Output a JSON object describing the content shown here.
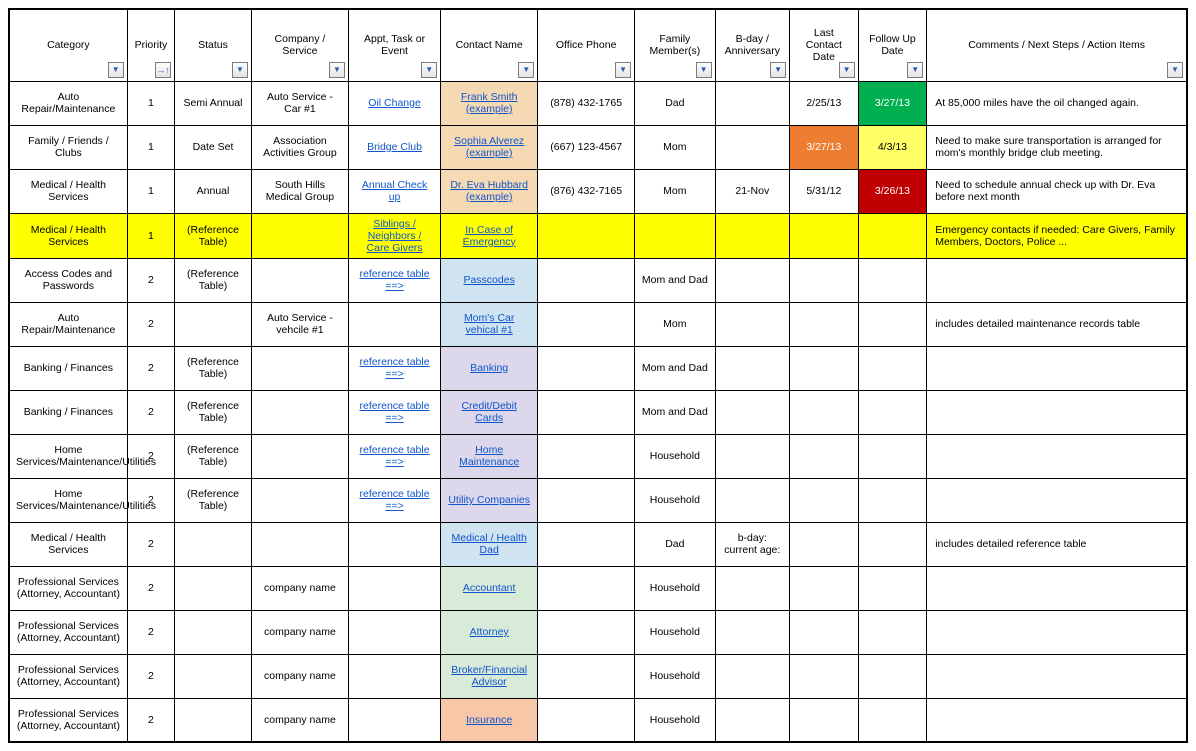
{
  "colors": {
    "link": "#1155cc",
    "bg_contact_tan": "#f4d9b3",
    "bg_contact_blue": "#d0e3f0",
    "bg_contact_lav": "#dcd7ea",
    "bg_contact_mint": "#d8ead8",
    "bg_contact_peach": "#f7c7a8",
    "bg_yellow": "#ffff00",
    "bg_orange": "#ed7d31",
    "bg_green": "#00b050",
    "bg_red": "#c00000",
    "bg_yellow_cell": "#ffff66"
  },
  "headers": [
    "Category",
    "Priority",
    "Status",
    "Company / Service",
    "Appt, Task or Event",
    "Contact Name",
    "Office Phone",
    "Family Member(s)",
    "B-day / Anniversary",
    "Last Contact Date",
    "Follow Up Date",
    "Comments / Next Steps / Action Items"
  ],
  "rows": [
    {
      "category": "Auto Repair/Maintenance",
      "priority": "1",
      "status": "Semi Annual",
      "company": "Auto Service - Car #1",
      "appt": "Oil Change",
      "appt_link": true,
      "contact": "Frank Smith (example)",
      "contact_link": true,
      "contact_bg": "bg_contact_tan",
      "office": "(878) 432-1765",
      "family": "Dad",
      "bday": "",
      "last": "2/25/13",
      "last_bg": "",
      "last_color": "",
      "follow": "3/27/13",
      "follow_bg": "bg_green",
      "follow_color": "#ffffff",
      "comments": "At 85,000 miles have the oil changed again."
    },
    {
      "category": "Family / Friends / Clubs",
      "priority": "1",
      "status": "Date Set",
      "company": "Association Activities Group",
      "appt": "Bridge Club",
      "appt_link": true,
      "contact": "Sophia Alverez (example)",
      "contact_link": true,
      "contact_bg": "bg_contact_tan",
      "office": "(667) 123-4567",
      "family": "Mom",
      "bday": "",
      "last": "3/27/13",
      "last_bg": "bg_orange",
      "last_color": "#ffffff",
      "follow": "4/3/13",
      "follow_bg": "bg_yellow_cell",
      "follow_color": "#000000",
      "comments": "Need to make sure transportation is arranged for mom's monthly bridge club meeting."
    },
    {
      "category": "Medical / Health Services",
      "priority": "1",
      "status": "Annual",
      "company": "South Hills Medical Group",
      "appt": "Annual Check up",
      "appt_link": true,
      "contact": "Dr. Eva Hubbard (example)",
      "contact_link": true,
      "contact_bg": "bg_contact_tan",
      "office": "(876) 432-7165",
      "family": "Mom",
      "bday": "21-Nov",
      "last": "5/31/12",
      "last_bg": "",
      "last_color": "",
      "follow": "3/26/13",
      "follow_bg": "bg_red",
      "follow_color": "#ffffff",
      "comments": "Need to schedule annual check up with Dr. Eva before next month"
    },
    {
      "row_bg": "bg_yellow",
      "category": "Medical / Health Services",
      "priority": "1",
      "status": "(Reference Table)",
      "company": "",
      "appt": "Siblings / Neighbors / Care Givers",
      "appt_link": true,
      "contact": "In Case of Emergency",
      "contact_link": true,
      "contact_bg": "bg_yellow",
      "office": "",
      "family": "",
      "bday": "",
      "last": "",
      "follow": "",
      "comments": "Emergency contacts if needed: Care Givers, Family Members, Doctors, Police ..."
    },
    {
      "category": "Access Codes and Passwords",
      "priority": "2",
      "status": "(Reference Table)",
      "company": "",
      "appt": "reference table ==>",
      "appt_link": true,
      "contact": "Passcodes",
      "contact_link": true,
      "contact_bg": "bg_contact_blue",
      "office": "",
      "family": "Mom and Dad",
      "bday": "",
      "last": "",
      "follow": "",
      "comments": ""
    },
    {
      "category": "Auto Repair/Maintenance",
      "priority": "2",
      "status": "",
      "company": "Auto Service - vehcile #1",
      "appt": "",
      "appt_link": false,
      "contact": "Mom's Car vehical #1",
      "contact_link": true,
      "contact_bg": "bg_contact_blue",
      "office": "",
      "family": "Mom",
      "bday": "",
      "last": "",
      "follow": "",
      "comments": "includes detailed maintenance records table"
    },
    {
      "category": "Banking / Finances",
      "priority": "2",
      "status": "(Reference Table)",
      "company": "",
      "appt": "reference table ==>",
      "appt_link": true,
      "contact": "Banking",
      "contact_link": true,
      "contact_bg": "bg_contact_lav",
      "office": "",
      "family": "Mom and Dad",
      "bday": "",
      "last": "",
      "follow": "",
      "comments": ""
    },
    {
      "category": "Banking / Finances",
      "priority": "2",
      "status": "(Reference Table)",
      "company": "",
      "appt": "reference table ==>",
      "appt_link": true,
      "contact": "Credit/Debit Cards",
      "contact_link": true,
      "contact_bg": "bg_contact_lav",
      "office": "",
      "family": "Mom and Dad",
      "bday": "",
      "last": "",
      "follow": "",
      "comments": ""
    },
    {
      "category": "Home Services/Maintenance/Utilities",
      "priority": "2",
      "status": "(Reference Table)",
      "company": "",
      "appt": "reference table ==>",
      "appt_link": true,
      "contact": "Home Maintenance",
      "contact_link": true,
      "contact_bg": "bg_contact_lav",
      "office": "",
      "family": "Household",
      "bday": "",
      "last": "",
      "follow": "",
      "comments": ""
    },
    {
      "category": "Home Services/Maintenance/Utilities",
      "priority": "2",
      "status": "(Reference Table)",
      "company": "",
      "appt": "reference table ==>",
      "appt_link": true,
      "contact": "Utility Companies",
      "contact_link": true,
      "contact_bg": "bg_contact_lav",
      "office": "",
      "family": "Household",
      "bday": "",
      "last": "",
      "follow": "",
      "comments": ""
    },
    {
      "category": "Medical / Health Services",
      "priority": "2",
      "status": "",
      "company": "",
      "appt": "",
      "appt_link": false,
      "contact": "Medical / Health Dad",
      "contact_link": true,
      "contact_bg": "bg_contact_blue",
      "office": "",
      "family": "Dad",
      "bday": "b-day: current age:",
      "last": "",
      "follow": "",
      "comments": "includes detailed reference table"
    },
    {
      "category": "Professional Services (Attorney, Accountant)",
      "priority": "2",
      "status": "",
      "company": "company name",
      "appt": "",
      "appt_link": false,
      "contact": "Accountant",
      "contact_link": true,
      "contact_bg": "bg_contact_mint",
      "office": "",
      "family": "Household",
      "bday": "",
      "last": "",
      "follow": "",
      "comments": ""
    },
    {
      "category": "Professional Services (Attorney, Accountant)",
      "priority": "2",
      "status": "",
      "company": "company name",
      "appt": "",
      "appt_link": false,
      "contact": "Attorney",
      "contact_link": true,
      "contact_bg": "bg_contact_mint",
      "office": "",
      "family": "Household",
      "bday": "",
      "last": "",
      "follow": "",
      "comments": ""
    },
    {
      "category": "Professional Services (Attorney, Accountant)",
      "priority": "2",
      "status": "",
      "company": "company name",
      "appt": "",
      "appt_link": false,
      "contact": "Broker/Financial Advisor",
      "contact_link": true,
      "contact_bg": "bg_contact_mint",
      "office": "",
      "family": "Household",
      "bday": "",
      "last": "",
      "follow": "",
      "comments": ""
    },
    {
      "category": "Professional Services (Attorney, Accountant)",
      "priority": "2",
      "status": "",
      "company": "company name",
      "appt": "",
      "appt_link": false,
      "contact": "Insurance",
      "contact_link": true,
      "contact_bg": "bg_contact_peach",
      "office": "",
      "family": "Household",
      "bday": "",
      "last": "",
      "follow": "",
      "comments": ""
    }
  ]
}
